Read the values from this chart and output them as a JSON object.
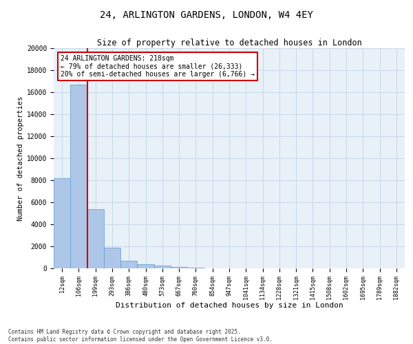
{
  "title_line1": "24, ARLINGTON GARDENS, LONDON, W4 4EY",
  "title_line2": "Size of property relative to detached houses in London",
  "xlabel": "Distribution of detached houses by size in London",
  "ylabel": "Number of detached properties",
  "categories": [
    "12sqm",
    "106sqm",
    "199sqm",
    "293sqm",
    "386sqm",
    "480sqm",
    "573sqm",
    "667sqm",
    "760sqm",
    "854sqm",
    "947sqm",
    "1041sqm",
    "1134sqm",
    "1228sqm",
    "1321sqm",
    "1415sqm",
    "1508sqm",
    "1602sqm",
    "1695sqm",
    "1789sqm",
    "1882sqm"
  ],
  "values": [
    8200,
    16700,
    5400,
    1900,
    700,
    370,
    220,
    130,
    70,
    0,
    0,
    0,
    0,
    0,
    0,
    0,
    0,
    0,
    0,
    0,
    0
  ],
  "bar_color": "#aec6e8",
  "bar_edge_color": "#5b9bd5",
  "background_color": "#ffffff",
  "plot_bg_color": "#e8f0f8",
  "grid_color": "#c8d8e8",
  "vline_color": "#cc0000",
  "annotation_text": "24 ARLINGTON GARDENS: 218sqm\n← 79% of detached houses are smaller (26,333)\n20% of semi-detached houses are larger (6,766) →",
  "annotation_box_color": "#cc0000",
  "ylim": [
    0,
    20000
  ],
  "yticks": [
    0,
    2000,
    4000,
    6000,
    8000,
    10000,
    12000,
    14000,
    16000,
    18000,
    20000
  ],
  "footer_line1": "Contains HM Land Registry data © Crown copyright and database right 2025.",
  "footer_line2": "Contains public sector information licensed under the Open Government Licence v3.0."
}
